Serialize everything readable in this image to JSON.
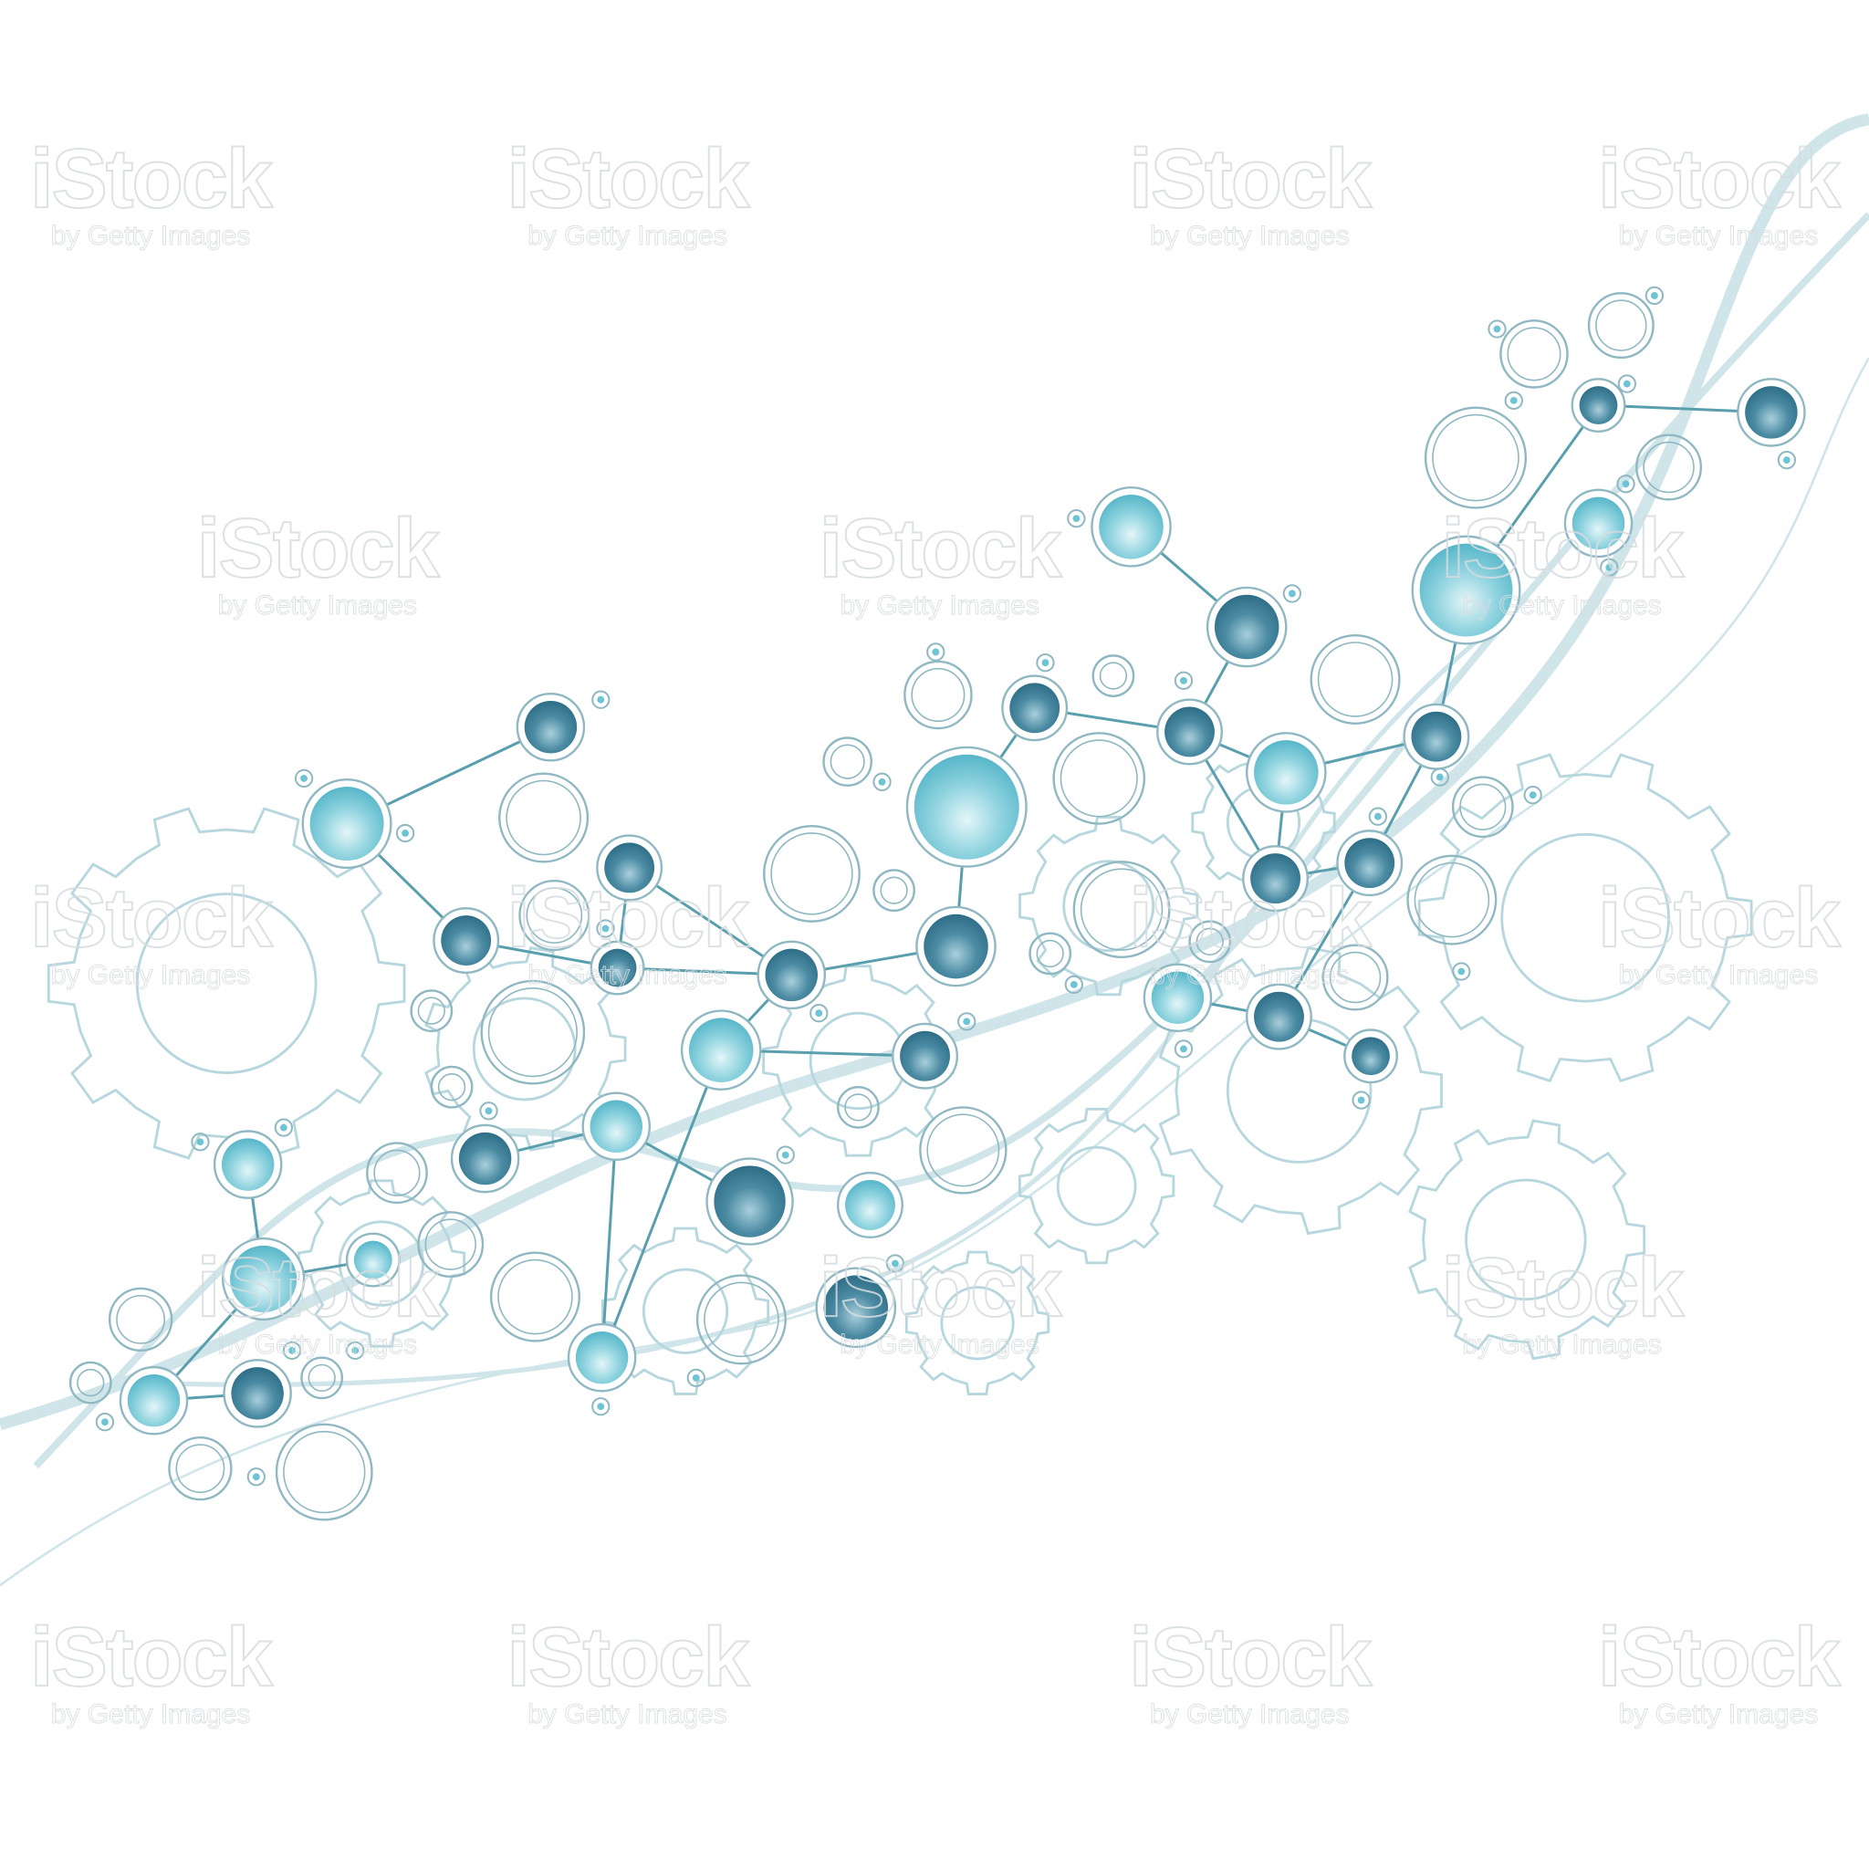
{
  "watermark": {
    "brand": "iStock",
    "credit": "by Getty Images"
  },
  "colors": {
    "background": "#ffffff",
    "gear_stroke": "#b7d7de",
    "ring_stroke": "#8fb8c2",
    "bond": "#5a9fae",
    "atom_dark_core": "#2f6f88",
    "atom_dark_highlight": "#a9cfdc",
    "atom_light_core": "#6cc4d4",
    "atom_light_highlight": "#e4f6f9",
    "wave": "#cfe5ea"
  }
}
